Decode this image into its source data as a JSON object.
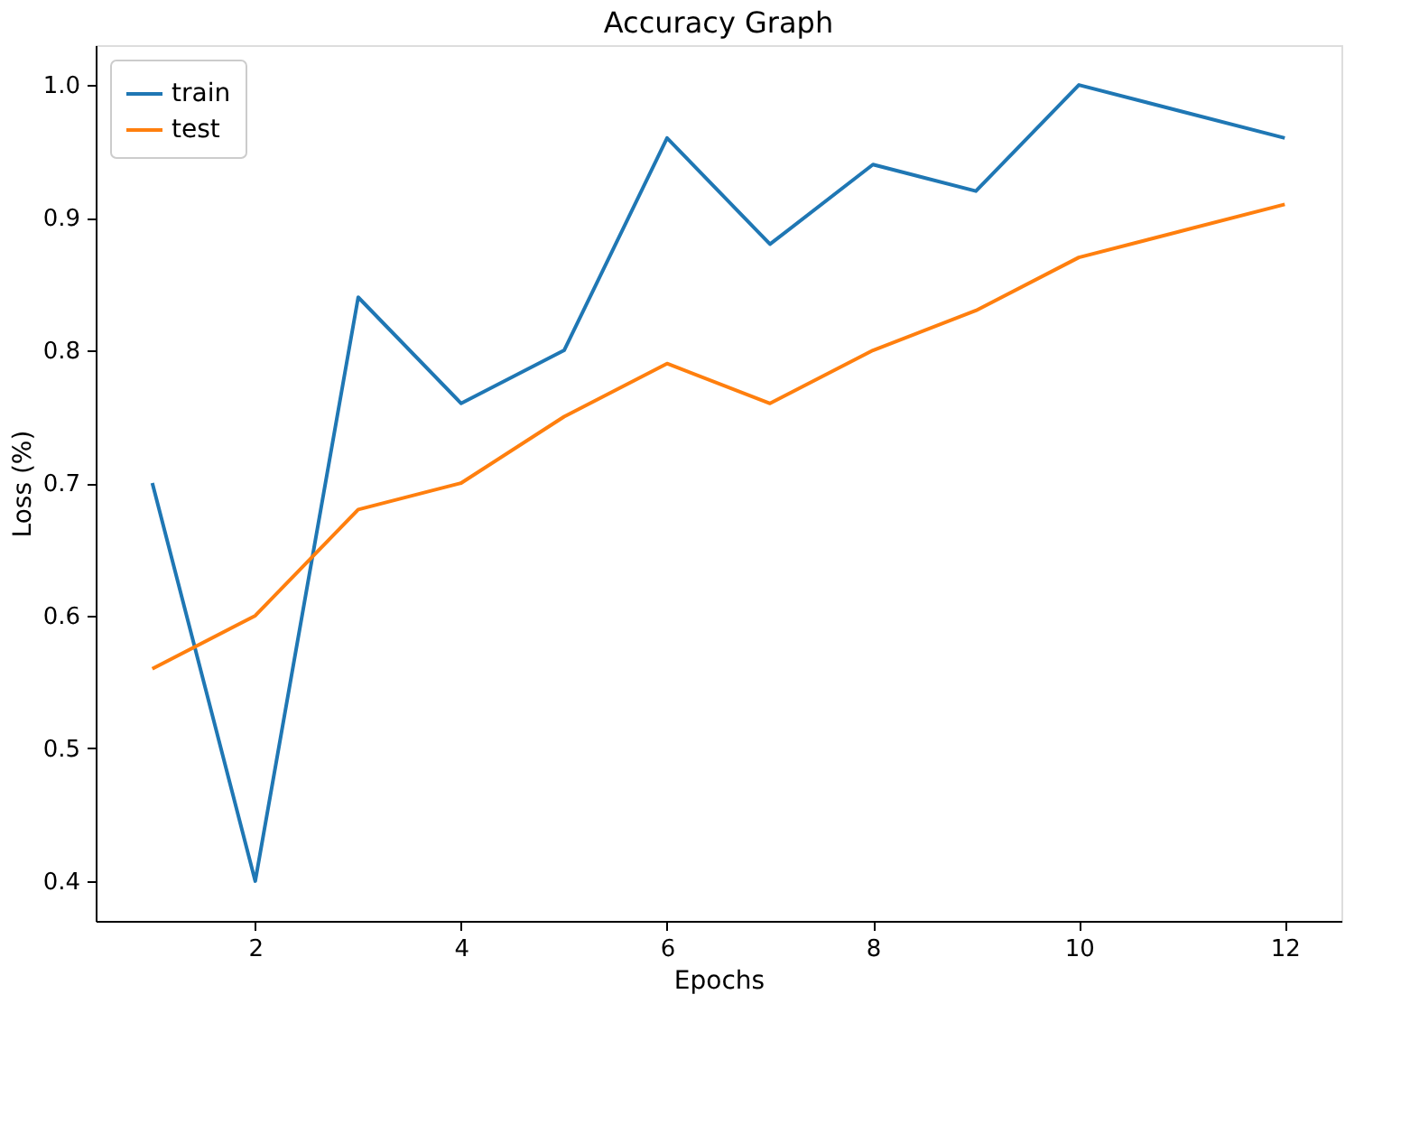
{
  "chart_data": {
    "type": "line",
    "title": "Accuracy Graph",
    "xlabel": "Epochs",
    "ylabel": "Loss (%)",
    "x": [
      1,
      2,
      3,
      4,
      5,
      6,
      7,
      8,
      9,
      10,
      11,
      12
    ],
    "series": [
      {
        "name": "train",
        "color": "#1f77b4",
        "values": [
          0.7,
          0.4,
          0.84,
          0.76,
          0.8,
          0.96,
          0.88,
          0.94,
          0.92,
          1.0,
          0.98,
          0.96
        ]
      },
      {
        "name": "test",
        "color": "#ff7f0e",
        "values": [
          0.56,
          0.6,
          0.68,
          0.7,
          0.75,
          0.79,
          0.76,
          0.8,
          0.83,
          0.87,
          0.89,
          0.91
        ]
      }
    ],
    "xlim": [
      0.45,
      12.55
    ],
    "ylim": [
      0.37,
      1.03
    ],
    "xticks": [
      2,
      4,
      6,
      8,
      10,
      12
    ],
    "yticks": [
      {
        "value": 0.4,
        "label": "0.4"
      },
      {
        "value": 0.5,
        "label": "0.5"
      },
      {
        "value": 0.6,
        "label": "0.6"
      },
      {
        "value": 0.7,
        "label": "0.7"
      },
      {
        "value": 0.8,
        "label": "0.8"
      },
      {
        "value": 0.9,
        "label": "0.9"
      },
      {
        "value": 1.0,
        "label": "1.0"
      }
    ],
    "legend": "top left",
    "grid": false,
    "marker": "none",
    "line_style": "solid"
  }
}
